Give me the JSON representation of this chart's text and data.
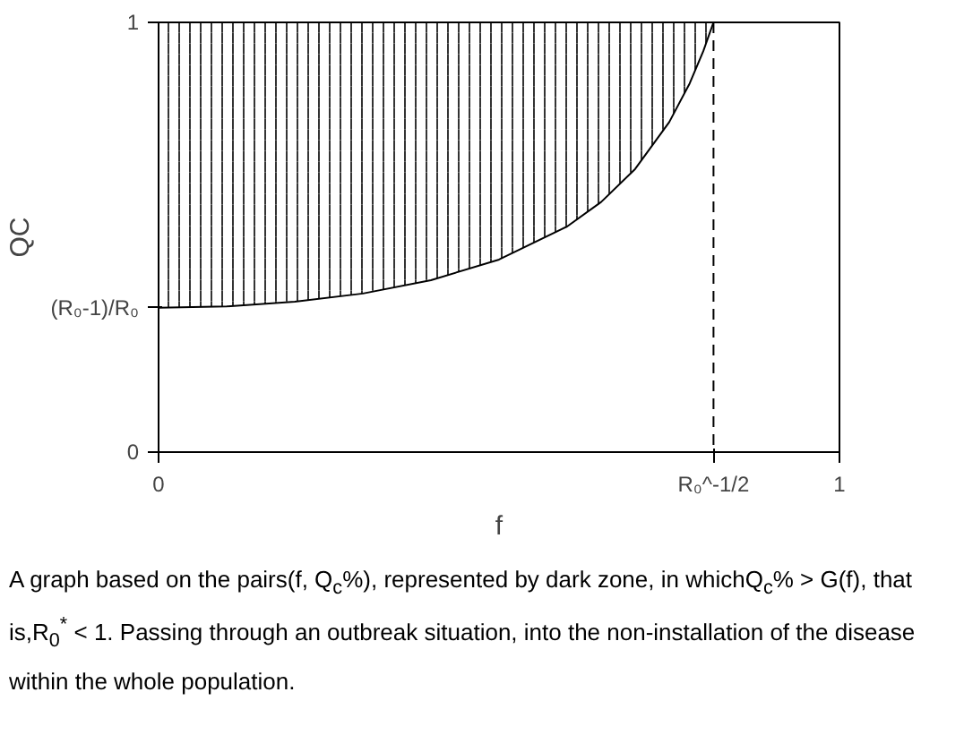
{
  "chart_data": {
    "type": "line",
    "xlabel": "f",
    "ylabel": "QC",
    "x": [
      0,
      0.1,
      0.2,
      0.3,
      0.4,
      0.5,
      0.6,
      0.65,
      0.7,
      0.75,
      0.78,
      0.8,
      0.815
    ],
    "series": [
      {
        "color": "#000000",
        "values": [
          0.336,
          0.339,
          0.35,
          0.369,
          0.4,
          0.448,
          0.525,
          0.582,
          0.659,
          0.768,
          0.858,
          0.933,
          1.0
        ],
        "lower": [
          0.336,
          0.339,
          0.35,
          0.369,
          0.4,
          0.448,
          0.525,
          0.582,
          0.659,
          0.768,
          0.858,
          0.933,
          1.0
        ],
        "upper": [
          1,
          1,
          1,
          1,
          1,
          1,
          1,
          1,
          1,
          1,
          1,
          1,
          1
        ]
      }
    ],
    "xlim": [
      0,
      1
    ],
    "ylim": [
      0,
      1
    ],
    "xticks": [
      0,
      {
        "value": 0.815,
        "label": "R₀^-1/2"
      },
      1
    ],
    "yticks": [
      0,
      {
        "value": 0.336,
        "label": "(R₀-1)/R₀"
      },
      1
    ],
    "ref_lines": [
      {
        "axis": "x",
        "value": 0.815,
        "label": null,
        "color": "#000000",
        "line_style": "dashed"
      }
    ],
    "grid": false,
    "marker": "none",
    "line_style": "solid",
    "annotations": [
      "A graph based on the pairs(f, Q$_{c}$%), represented by dark zone, in whichQ$_{c}$% > G(f), that is,R$_{0}$$^{*}$ < 1. Passing through an outbreak situation, into the non-installation of the disease within the whole population."
    ]
  }
}
